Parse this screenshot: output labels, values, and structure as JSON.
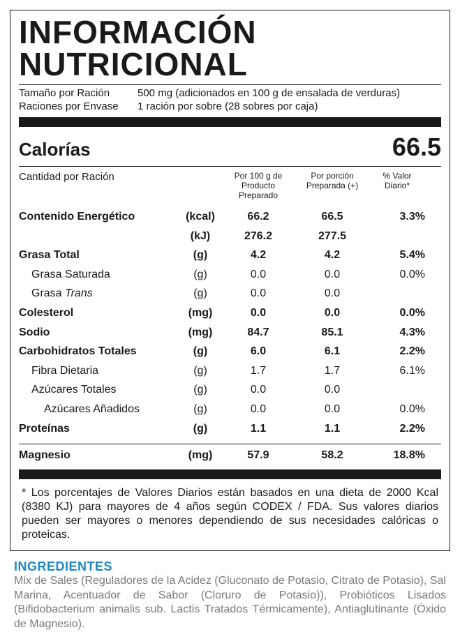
{
  "title": "INFORMACIÓN NUTRICIONAL",
  "serving": {
    "size_label": "Tamaño por Ración",
    "size_value": "500 mg (adicionados en 100 g de ensalada de verduras)",
    "per_container_label": "Raciones por Envase",
    "per_container_value": "1 ración por sobre (28 sobres por caja)"
  },
  "calories": {
    "label": "Calorías",
    "value": "66.5"
  },
  "columns": {
    "amount_label": "Cantidad por Ración",
    "col1": "Por 100 g de Producto Preparado",
    "col2": "Por porción Preparada (+)",
    "col3": "% Valor Diario*"
  },
  "rows": [
    {
      "name": "Contenido Energético",
      "unit": "(kcal)",
      "c1": "66.2",
      "c2": "66.5",
      "c3": "3.3%",
      "bold": true,
      "indent": 0
    },
    {
      "name": "",
      "unit": "(kJ)",
      "c1": "276.2",
      "c2": "277.5",
      "c3": "",
      "bold": true,
      "indent": 0
    },
    {
      "name": "Grasa Total",
      "unit": "(g)",
      "c1": "4.2",
      "c2": "4.2",
      "c3": "5.4%",
      "bold": true,
      "indent": 0
    },
    {
      "name": "Grasa Saturada",
      "unit": "(g)",
      "c1": "0.0",
      "c2": "0.0",
      "c3": "0.0%",
      "bold": false,
      "indent": 1
    },
    {
      "name_html": "Grasa <span class=\"italic\">Trans</span>",
      "name": "Grasa Trans",
      "unit": "(g)",
      "c1": "0.0",
      "c2": "0.0",
      "c3": "",
      "bold": false,
      "indent": 1
    },
    {
      "name": "Colesterol",
      "unit": "(mg)",
      "c1": "0.0",
      "c2": "0.0",
      "c3": "0.0%",
      "bold": true,
      "indent": 0
    },
    {
      "name": "Sodio",
      "unit": "(mg)",
      "c1": "84.7",
      "c2": "85.1",
      "c3": "4.3%",
      "bold": true,
      "indent": 0
    },
    {
      "name": "Carbohidratos Totales",
      "unit": "(g)",
      "c1": "6.0",
      "c2": "6.1",
      "c3": "2.2%",
      "bold": true,
      "indent": 0
    },
    {
      "name": "Fibra Dietaria",
      "unit": "(g)",
      "c1": "1.7",
      "c2": "1.7",
      "c3": "6.1%",
      "bold": false,
      "indent": 1
    },
    {
      "name": "Azúcares Totales",
      "unit": "(g)",
      "c1": "0.0",
      "c2": "0.0",
      "c3": "",
      "bold": false,
      "indent": 1
    },
    {
      "name": "Azúcares Añadidos",
      "unit": "(g)",
      "c1": "0.0",
      "c2": "0.0",
      "c3": "0.0%",
      "bold": false,
      "indent": 2
    },
    {
      "name": "Proteínas",
      "unit": "(g)",
      "c1": "1.1",
      "c2": "1.1",
      "c3": "2.2%",
      "bold": true,
      "indent": 0
    }
  ],
  "minerals": [
    {
      "name": "Magnesio",
      "unit": "(mg)",
      "c1": "57.9",
      "c2": "58.2",
      "c3": "18.8%",
      "bold": true,
      "indent": 0
    }
  ],
  "footnote": "* Los porcentajes de Valores Diarios están basados en una dieta de 2000 Kcal (8380 KJ) para mayores de 4 años según CODEX / FDA. Sus valores diarios pueden ser mayores o menores dependiendo de sus necesidades calóricas o proteicas.",
  "ingredients": {
    "title": "INGREDIENTES",
    "text": "Mix de Sales (Reguladores de la Acidez (Gluconato de Potasio, Citrato de Potasio), Sal Marina, Acentuador de Sabor (Cloruro de Potasio)), Probióticos Lisados (Bifidobacterium animalis sub. Lactis Tratados Térmicamente), Antiaglutinante (Óxido de Magnesio)."
  },
  "style": {
    "text_color": "#1a1a1a",
    "accent_color": "#1f87c7",
    "muted_color": "#7a7a7a",
    "background": "#ffffff"
  }
}
